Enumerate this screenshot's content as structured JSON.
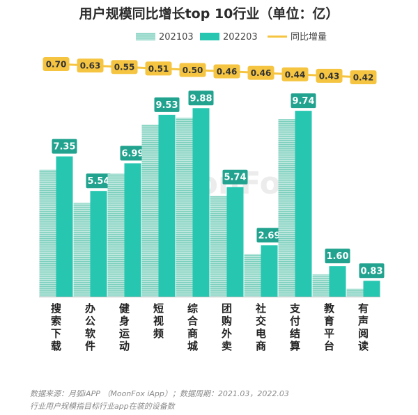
{
  "chart_data": {
    "type": "bar",
    "title": "用户规模同比增长top 10行业（单位：亿）",
    "categories": [
      "搜索下载",
      "办公软件",
      "健身运动",
      "短视频",
      "综合商城",
      "团购外卖",
      "社交电商",
      "支付结算",
      "教育平台",
      "有声阅读"
    ],
    "series": [
      {
        "name": "202103",
        "values": [
          6.65,
          4.91,
          6.44,
          9.02,
          9.38,
          5.28,
          2.23,
          9.3,
          1.17,
          0.41
        ],
        "color": "#9bd9cc",
        "pattern": "striped"
      },
      {
        "name": "202203",
        "values": [
          7.35,
          5.54,
          6.99,
          9.53,
          9.88,
          5.74,
          2.69,
          9.74,
          1.6,
          0.83
        ],
        "color": "#26c6b0"
      }
    ],
    "growth": {
      "name": "同比增量",
      "values": [
        "0.70",
        "0.63",
        "0.55",
        "0.51",
        "0.50",
        "0.46",
        "0.46",
        "0.44",
        "0.43",
        "0.42"
      ],
      "color": "#f5c542"
    },
    "ylim": [
      0,
      11
    ],
    "grid": false,
    "legend_position": "top-center"
  },
  "watermark": "MoonFox",
  "footnote": {
    "line1": "数据来源：月狐iAPP （MoonFox iApp）；数据周期：2021.03，2022.03",
    "line2": "行业用户规模指目标行业app在装的设备数"
  }
}
